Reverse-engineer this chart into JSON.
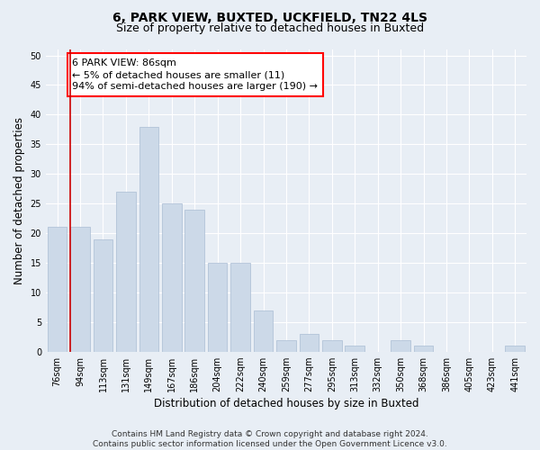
{
  "title": "6, PARK VIEW, BUXTED, UCKFIELD, TN22 4LS",
  "subtitle": "Size of property relative to detached houses in Buxted",
  "xlabel": "Distribution of detached houses by size in Buxted",
  "ylabel": "Number of detached properties",
  "categories": [
    "76sqm",
    "94sqm",
    "113sqm",
    "131sqm",
    "149sqm",
    "167sqm",
    "186sqm",
    "204sqm",
    "222sqm",
    "240sqm",
    "259sqm",
    "277sqm",
    "295sqm",
    "313sqm",
    "332sqm",
    "350sqm",
    "368sqm",
    "386sqm",
    "405sqm",
    "423sqm",
    "441sqm"
  ],
  "values": [
    21,
    21,
    19,
    27,
    38,
    25,
    24,
    15,
    15,
    7,
    2,
    3,
    2,
    1,
    0,
    2,
    1,
    0,
    0,
    0,
    1
  ],
  "bar_color": "#ccd9e8",
  "bar_edge_color": "#aabdd4",
  "highlight_color": "#cc0000",
  "annotation_text": "6 PARK VIEW: 86sqm\n← 5% of detached houses are smaller (11)\n94% of semi-detached houses are larger (190) →",
  "ylim": [
    0,
    51
  ],
  "yticks": [
    0,
    5,
    10,
    15,
    20,
    25,
    30,
    35,
    40,
    45,
    50
  ],
  "footer_line1": "Contains HM Land Registry data © Crown copyright and database right 2024.",
  "footer_line2": "Contains public sector information licensed under the Open Government Licence v3.0.",
  "bg_color": "#e8eef5",
  "plot_bg_color": "#e8eef5",
  "grid_color": "#ffffff",
  "title_fontsize": 10,
  "subtitle_fontsize": 9,
  "axis_label_fontsize": 8.5,
  "tick_fontsize": 7,
  "footer_fontsize": 6.5,
  "annotation_fontsize": 8
}
